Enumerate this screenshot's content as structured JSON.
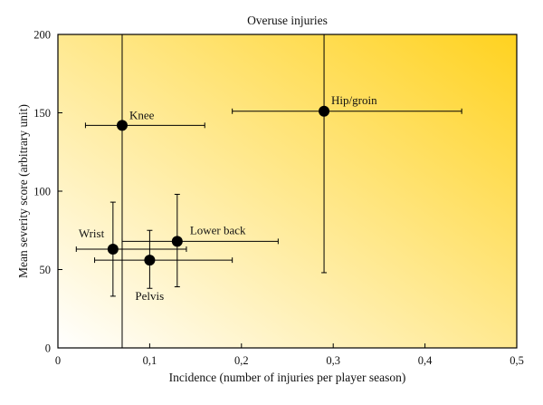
{
  "chart_data": {
    "type": "scatter",
    "title": "Overuse injuries",
    "xlabel": "Incidence (number of injuries per player season)",
    "ylabel": "Mean severity score (arbitrary unit)",
    "xlim": [
      0,
      0.5
    ],
    "ylim": [
      0,
      200
    ],
    "xticks": [
      0,
      0.1,
      0.2,
      0.3,
      0.4,
      0.5
    ],
    "xtick_labels": [
      "0",
      "0,1",
      "0,2",
      "0,3",
      "0,4",
      "0,5"
    ],
    "yticks": [
      0,
      50,
      100,
      150,
      200
    ],
    "ytick_labels": [
      "0",
      "50",
      "100",
      "150",
      "200"
    ],
    "grid": false,
    "background": "white-to-yellow gradient",
    "colors": {
      "gradient_start": "#ffffff",
      "gradient_end": "#ffd21f",
      "marker": "#000000",
      "axis": "#000000"
    },
    "points": [
      {
        "label": "Knee",
        "x": 0.07,
        "y": 142,
        "x_err": [
          0.03,
          0.16
        ],
        "y_err": [
          0,
          200
        ]
      },
      {
        "label": "Hip/groin",
        "x": 0.29,
        "y": 151,
        "x_err": [
          0.19,
          0.44
        ],
        "y_err": [
          48,
          200
        ]
      },
      {
        "label": "Lower back",
        "x": 0.13,
        "y": 68,
        "x_err": [
          0.07,
          0.24
        ],
        "y_err": [
          39,
          98
        ]
      },
      {
        "label": "Wrist",
        "x": 0.06,
        "y": 63,
        "x_err": [
          0.02,
          0.14
        ],
        "y_err": [
          33,
          93
        ]
      },
      {
        "label": "Pelvis",
        "x": 0.1,
        "y": 56,
        "x_err": [
          0.04,
          0.19
        ],
        "y_err": [
          38,
          75
        ]
      }
    ]
  }
}
